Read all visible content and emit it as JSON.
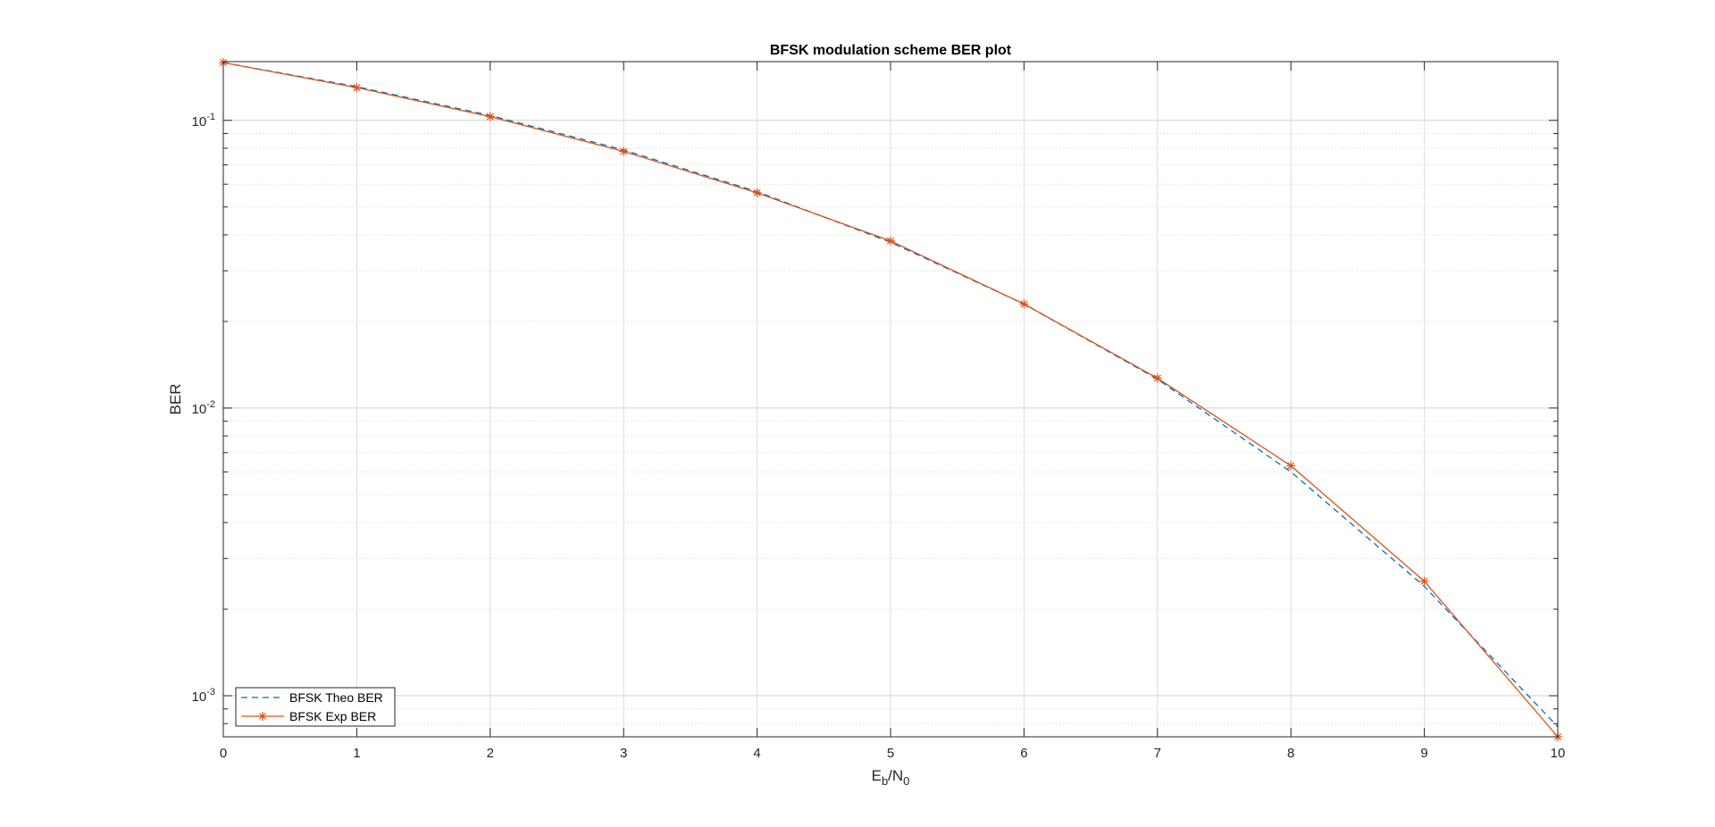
{
  "chart_data": {
    "type": "line",
    "title": "BFSK modulation scheme BER plot",
    "xlabel_base": "E",
    "xlabel_sub1": "b",
    "xlabel_mid": "/N",
    "xlabel_sub2": "0",
    "ylabel": "BER",
    "xlim": [
      0,
      10
    ],
    "ylim": [
      0.00072,
      0.16
    ],
    "yscale": "log",
    "grid": true,
    "x_ticks": [
      0,
      1,
      2,
      3,
      4,
      5,
      6,
      7,
      8,
      9,
      10
    ],
    "y_tick_labels": [
      {
        "value": 0.1,
        "base": "10",
        "exp": "-1"
      },
      {
        "value": 0.01,
        "base": "10",
        "exp": "-2"
      },
      {
        "value": 0.001,
        "base": "10",
        "exp": "-3"
      }
    ],
    "legend_position": "bottom-left",
    "x": [
      0,
      1,
      2,
      3,
      4,
      5,
      6,
      7,
      8,
      9,
      10
    ],
    "series": [
      {
        "name": "BFSK Theo BER",
        "color": "#0072BD",
        "style": "dashed",
        "marker": "none",
        "values": [
          0.1587,
          0.1309,
          0.104,
          0.0789,
          0.0565,
          0.0377,
          0.023,
          0.0126,
          0.006,
          0.0024,
          0.00078
        ]
      },
      {
        "name": "BFSK Exp BER",
        "color": "#D95319",
        "style": "solid",
        "marker": "asterisk",
        "values": [
          0.1587,
          0.13,
          0.103,
          0.078,
          0.056,
          0.0381,
          0.023,
          0.0127,
          0.0063,
          0.0025,
          0.00072
        ]
      }
    ]
  }
}
